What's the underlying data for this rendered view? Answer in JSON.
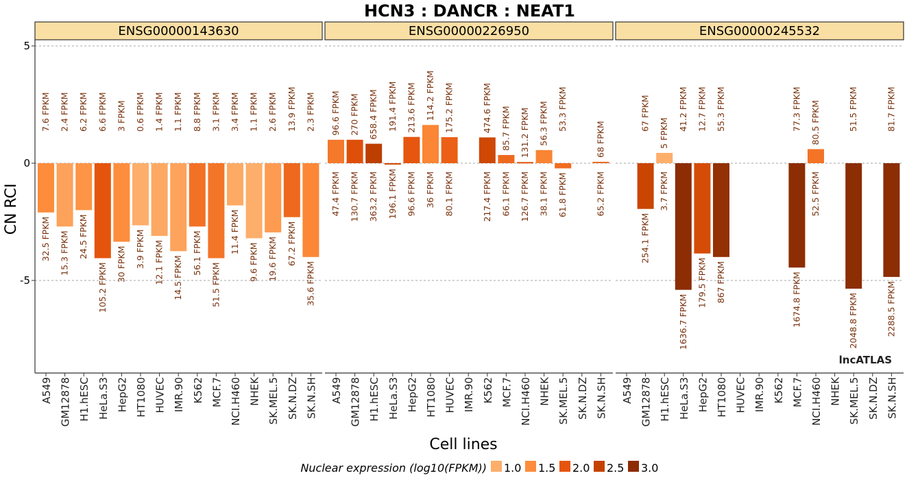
{
  "chart_data": {
    "type": "bar",
    "title": "HCN3 : DANCR : NEAT1",
    "xlabel": "Cell lines",
    "ylabel": "CN RCI",
    "ylim": [
      -9,
      6
    ],
    "yticks": [
      -5,
      0,
      5
    ],
    "grid": "dashed horizontal at y ticks",
    "credit": "lncATLAS",
    "categories": [
      "A549",
      "GM12878",
      "H1.hESC",
      "HeLa.S3",
      "HepG2",
      "HT1080",
      "HUVEC",
      "IMR.90",
      "K562",
      "MCF.7",
      "NCI.H460",
      "NHEK",
      "SK.MEL.5",
      "SK.N.DZ",
      "SK.N.SH"
    ],
    "legend": {
      "title": "Nuclear expression (log10(FPKM))",
      "placement": "bottom",
      "items": [
        {
          "label": "1.0",
          "color": "#fdae6b"
        },
        {
          "label": "1.5",
          "color": "#fd8d3c"
        },
        {
          "label": "2.0",
          "color": "#e6550d"
        },
        {
          "label": "2.5",
          "color": "#c44200"
        },
        {
          "label": "3.0",
          "color": "#8c2d04"
        }
      ]
    },
    "panels": [
      {
        "name": "ENSG00000143630",
        "rci": [
          -2.1,
          -2.7,
          -2.0,
          -4.05,
          -3.35,
          -2.65,
          -3.1,
          -3.75,
          -2.7,
          -4.05,
          -1.8,
          -3.2,
          -2.95,
          -2.3,
          -4.0
        ],
        "nuclear_log10_fpkm": [
          1.51,
          1.18,
          1.39,
          2.02,
          1.48,
          0.59,
          1.08,
          1.16,
          1.75,
          1.71,
          1.06,
          0.98,
          1.29,
          1.83,
          1.55
        ],
        "cytoplasmic_labels": [
          "7.6 FPKM",
          "2.4 FPKM",
          "6.2 FPKM",
          "6.6 FPKM",
          "3 FPKM",
          "0.6 FPKM",
          "1.4 FPKM",
          "1.1 FPKM",
          "8.8 FPKM",
          "3.1 FPKM",
          "3.4 FPKM",
          "1.1 FPKM",
          "2.6 FPKM",
          "13.9 FPKM",
          "2.3 FPKM"
        ],
        "nuclear_labels": [
          "32.5 FPKM",
          "15.3 FPKM",
          "24.5 FPKM",
          "105.2 FPKM",
          "30 FPKM",
          "3.9 FPKM",
          "12.1 FPKM",
          "14.5 FPKM",
          "56.1 FPKM",
          "51.5 FPKM",
          "11.4 FPKM",
          "9.6 FPKM",
          "19.6 FPKM",
          "67.2 FPKM",
          "35.6 FPKM"
        ]
      },
      {
        "name": "ENSG00000226950",
        "rci": [
          1.0,
          1.0,
          0.83,
          -0.06,
          1.12,
          1.63,
          1.11,
          null,
          1.1,
          0.35,
          0.05,
          0.56,
          -0.22,
          null,
          0.06
        ],
        "nuclear_log10_fpkm": [
          1.68,
          2.12,
          2.56,
          2.29,
          1.99,
          1.56,
          1.9,
          null,
          2.34,
          1.82,
          2.1,
          1.58,
          1.79,
          null,
          1.81
        ],
        "cytoplasmic_labels": [
          "96.6 FPKM",
          "270 FPKM",
          "658.4 FPKM",
          "191.4 FPKM",
          "213.6 FPKM",
          "114.2 FPKM",
          "175.2 FPKM",
          "",
          "474.6 FPKM",
          "85.7 FPKM",
          "131.2 FPKM",
          "56.3 FPKM",
          "53.3 FPKM",
          "",
          "68 FPKM"
        ],
        "nuclear_labels": [
          "47.4 FPKM",
          "130.7 FPKM",
          "363.2 FPKM",
          "196.1 FPKM",
          "96.6 FPKM",
          "36 FPKM",
          "80.1 FPKM",
          "",
          "217.4 FPKM",
          "66.1 FPKM",
          "126.7 FPKM",
          "38.1 FPKM",
          "61.8 FPKM",
          "",
          "65.2 FPKM"
        ]
      },
      {
        "name": "ENSG00000245532",
        "rci": [
          null,
          -1.95,
          0.44,
          -5.4,
          -3.85,
          -4.0,
          null,
          null,
          null,
          -4.45,
          0.6,
          null,
          -5.35,
          null,
          -4.85
        ],
        "nuclear_log10_fpkm": [
          null,
          2.41,
          0.57,
          3.21,
          2.25,
          2.94,
          null,
          null,
          null,
          3.22,
          1.72,
          null,
          3.31,
          null,
          3.36
        ],
        "cytoplasmic_labels": [
          "",
          "67 FPKM",
          "5 FPKM",
          "41.2 FPKM",
          "12.7 FPKM",
          "55.3 FPKM",
          "",
          "",
          "",
          "77.3 FPKM",
          "80.5 FPKM",
          "",
          "51.5 FPKM",
          "",
          "81.7 FPKM"
        ],
        "nuclear_labels": [
          "",
          "254.1 FPKM",
          "3.7 FPKM",
          "1636.7 FPKM",
          "179.5 FPKM",
          "867 FPKM",
          "",
          "",
          "",
          "1674.8 FPKM",
          "52.5 FPKM",
          "",
          "2048.8 FPKM",
          "",
          "2288.5 FPKM"
        ]
      }
    ]
  }
}
